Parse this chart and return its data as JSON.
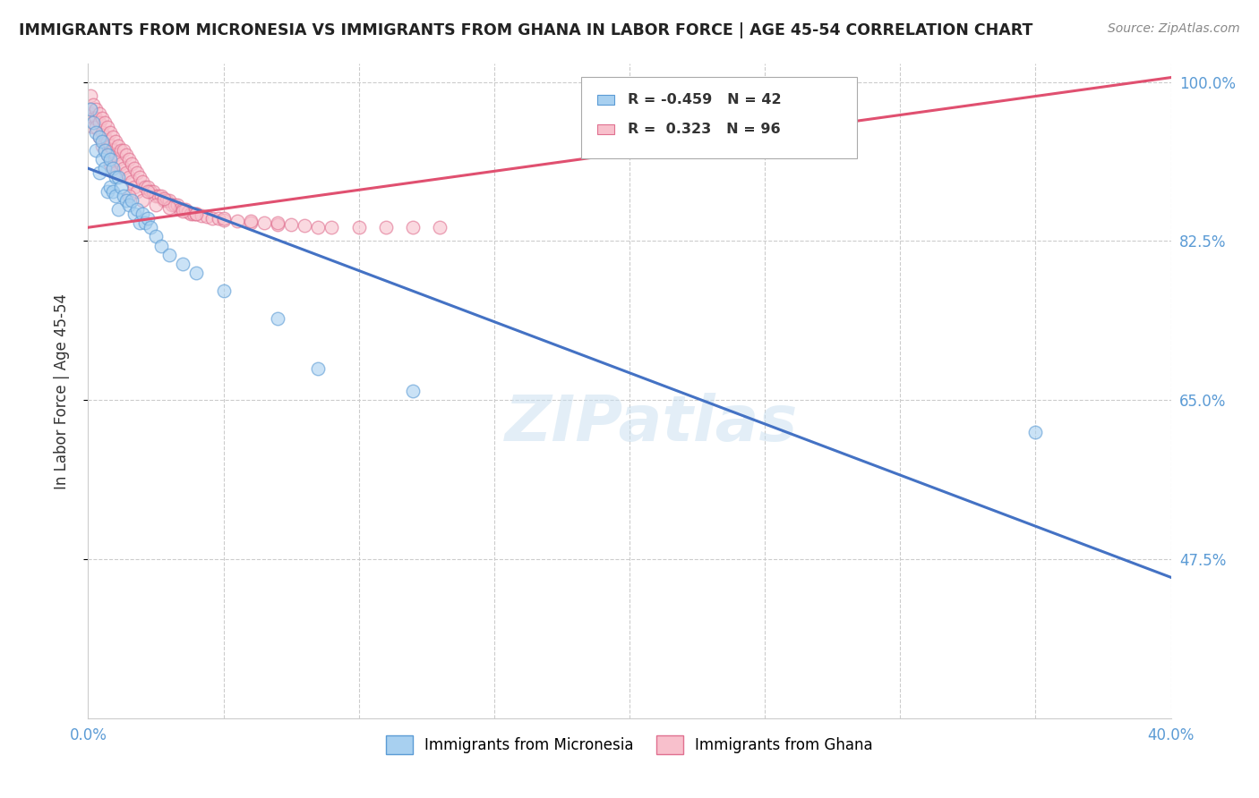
{
  "title": "IMMIGRANTS FROM MICRONESIA VS IMMIGRANTS FROM GHANA IN LABOR FORCE | AGE 45-54 CORRELATION CHART",
  "source": "Source: ZipAtlas.com",
  "ylabel": "In Labor Force | Age 45-54",
  "xlim": [
    0.0,
    0.4
  ],
  "ylim": [
    0.3,
    1.02
  ],
  "ytick_values": [
    1.0,
    0.825,
    0.65,
    0.475
  ],
  "ytick_labels": [
    "100.0%",
    "82.5%",
    "65.0%",
    "47.5%"
  ],
  "xtick_values": [
    0.0,
    0.05,
    0.1,
    0.15,
    0.2,
    0.25,
    0.3,
    0.35,
    0.4
  ],
  "xtick_labels": [
    "0.0%",
    "",
    "",
    "",
    "",
    "",
    "",
    "",
    "40.0%"
  ],
  "legend_r_blue": "-0.459",
  "legend_n_blue": "42",
  "legend_r_pink": "0.323",
  "legend_n_pink": "96",
  "blue_scatter_color": "#a8d0f0",
  "blue_edge_color": "#5b9bd5",
  "pink_scatter_color": "#f8c0cc",
  "pink_edge_color": "#e07090",
  "line_blue_color": "#4472c4",
  "line_pink_color": "#e05070",
  "watermark": "ZIPatlas",
  "blue_label": "Immigrants from Micronesia",
  "pink_label": "Immigrants from Ghana",
  "blue_line_x0": 0.0,
  "blue_line_y0": 0.905,
  "blue_line_x1": 0.4,
  "blue_line_y1": 0.455,
  "pink_line_x0": 0.0,
  "pink_line_y0": 0.84,
  "pink_line_x1": 0.4,
  "pink_line_y1": 1.005,
  "micronesia_points": [
    [
      0.001,
      0.97
    ],
    [
      0.002,
      0.955
    ],
    [
      0.003,
      0.945
    ],
    [
      0.003,
      0.925
    ],
    [
      0.004,
      0.94
    ],
    [
      0.004,
      0.9
    ],
    [
      0.005,
      0.935
    ],
    [
      0.005,
      0.915
    ],
    [
      0.006,
      0.925
    ],
    [
      0.006,
      0.905
    ],
    [
      0.007,
      0.92
    ],
    [
      0.007,
      0.88
    ],
    [
      0.008,
      0.915
    ],
    [
      0.008,
      0.885
    ],
    [
      0.009,
      0.905
    ],
    [
      0.009,
      0.88
    ],
    [
      0.01,
      0.895
    ],
    [
      0.01,
      0.875
    ],
    [
      0.011,
      0.895
    ],
    [
      0.011,
      0.86
    ],
    [
      0.012,
      0.885
    ],
    [
      0.013,
      0.875
    ],
    [
      0.014,
      0.87
    ],
    [
      0.015,
      0.865
    ],
    [
      0.016,
      0.87
    ],
    [
      0.017,
      0.855
    ],
    [
      0.018,
      0.86
    ],
    [
      0.019,
      0.845
    ],
    [
      0.02,
      0.855
    ],
    [
      0.021,
      0.845
    ],
    [
      0.022,
      0.85
    ],
    [
      0.023,
      0.84
    ],
    [
      0.025,
      0.83
    ],
    [
      0.027,
      0.82
    ],
    [
      0.03,
      0.81
    ],
    [
      0.035,
      0.8
    ],
    [
      0.04,
      0.79
    ],
    [
      0.05,
      0.77
    ],
    [
      0.07,
      0.74
    ],
    [
      0.085,
      0.685
    ],
    [
      0.12,
      0.66
    ],
    [
      0.35,
      0.615
    ]
  ],
  "ghana_points": [
    [
      0.001,
      0.985
    ],
    [
      0.001,
      0.97
    ],
    [
      0.001,
      0.965
    ],
    [
      0.002,
      0.975
    ],
    [
      0.002,
      0.96
    ],
    [
      0.002,
      0.95
    ],
    [
      0.003,
      0.97
    ],
    [
      0.003,
      0.96
    ],
    [
      0.003,
      0.95
    ],
    [
      0.004,
      0.965
    ],
    [
      0.004,
      0.955
    ],
    [
      0.004,
      0.94
    ],
    [
      0.005,
      0.96
    ],
    [
      0.005,
      0.945
    ],
    [
      0.005,
      0.93
    ],
    [
      0.006,
      0.955
    ],
    [
      0.006,
      0.94
    ],
    [
      0.006,
      0.925
    ],
    [
      0.007,
      0.95
    ],
    [
      0.007,
      0.935
    ],
    [
      0.007,
      0.92
    ],
    [
      0.008,
      0.945
    ],
    [
      0.008,
      0.93
    ],
    [
      0.008,
      0.91
    ],
    [
      0.009,
      0.94
    ],
    [
      0.009,
      0.925
    ],
    [
      0.009,
      0.905
    ],
    [
      0.01,
      0.935
    ],
    [
      0.01,
      0.92
    ],
    [
      0.01,
      0.9
    ],
    [
      0.011,
      0.93
    ],
    [
      0.011,
      0.915
    ],
    [
      0.012,
      0.925
    ],
    [
      0.012,
      0.91
    ],
    [
      0.013,
      0.925
    ],
    [
      0.013,
      0.905
    ],
    [
      0.014,
      0.92
    ],
    [
      0.014,
      0.9
    ],
    [
      0.015,
      0.915
    ],
    [
      0.015,
      0.895
    ],
    [
      0.016,
      0.91
    ],
    [
      0.016,
      0.89
    ],
    [
      0.017,
      0.905
    ],
    [
      0.017,
      0.885
    ],
    [
      0.018,
      0.9
    ],
    [
      0.018,
      0.88
    ],
    [
      0.019,
      0.895
    ],
    [
      0.02,
      0.89
    ],
    [
      0.021,
      0.885
    ],
    [
      0.022,
      0.885
    ],
    [
      0.023,
      0.88
    ],
    [
      0.024,
      0.88
    ],
    [
      0.025,
      0.875
    ],
    [
      0.026,
      0.875
    ],
    [
      0.027,
      0.875
    ],
    [
      0.028,
      0.87
    ],
    [
      0.029,
      0.87
    ],
    [
      0.03,
      0.87
    ],
    [
      0.031,
      0.865
    ],
    [
      0.032,
      0.865
    ],
    [
      0.033,
      0.865
    ],
    [
      0.034,
      0.86
    ],
    [
      0.035,
      0.86
    ],
    [
      0.036,
      0.86
    ],
    [
      0.037,
      0.857
    ],
    [
      0.038,
      0.855
    ],
    [
      0.039,
      0.855
    ],
    [
      0.04,
      0.855
    ],
    [
      0.042,
      0.853
    ],
    [
      0.044,
      0.852
    ],
    [
      0.046,
      0.85
    ],
    [
      0.048,
      0.85
    ],
    [
      0.05,
      0.848
    ],
    [
      0.055,
      0.847
    ],
    [
      0.06,
      0.845
    ],
    [
      0.065,
      0.845
    ],
    [
      0.07,
      0.843
    ],
    [
      0.075,
      0.843
    ],
    [
      0.08,
      0.842
    ],
    [
      0.085,
      0.84
    ],
    [
      0.09,
      0.84
    ],
    [
      0.1,
      0.84
    ],
    [
      0.11,
      0.84
    ],
    [
      0.12,
      0.84
    ],
    [
      0.13,
      0.84
    ],
    [
      0.015,
      0.875
    ],
    [
      0.02,
      0.87
    ],
    [
      0.025,
      0.865
    ],
    [
      0.03,
      0.862
    ],
    [
      0.035,
      0.858
    ],
    [
      0.04,
      0.855
    ],
    [
      0.05,
      0.85
    ],
    [
      0.06,
      0.847
    ],
    [
      0.07,
      0.845
    ],
    [
      0.022,
      0.88
    ],
    [
      0.028,
      0.872
    ]
  ]
}
